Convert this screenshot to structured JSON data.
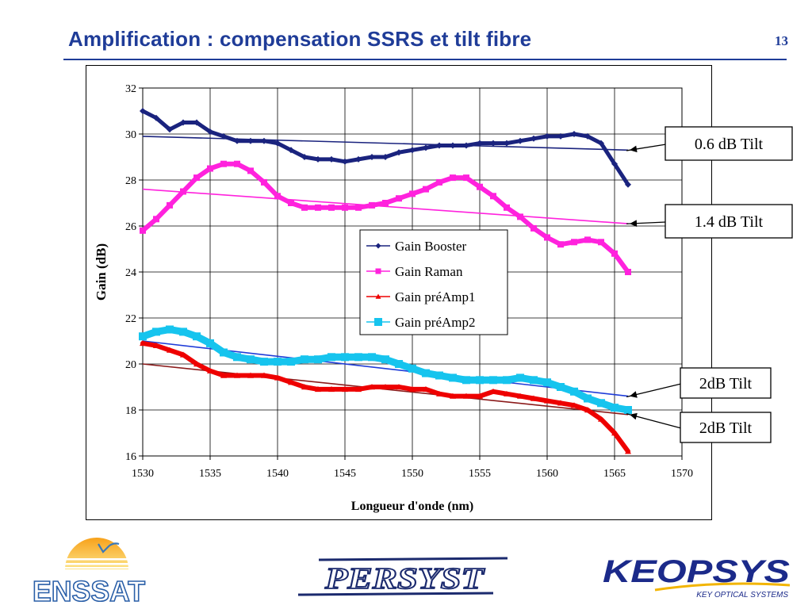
{
  "slide": {
    "title": "Amplification : compensation SSRS et tilt fibre",
    "page_number": "13"
  },
  "logos": {
    "enssat": "ENSSAT",
    "persyst": "PERSYST",
    "keopsys": "KEOPSYS",
    "keopsys_tagline": "KEY OPTICAL SYSTEMS"
  },
  "chart_data": {
    "type": "line",
    "xlabel": "Longueur d'onde (nm)",
    "ylabel": "Gain (dB)",
    "xlim": [
      1530,
      1570
    ],
    "ylim": [
      16,
      32
    ],
    "xticks": [
      1530,
      1535,
      1540,
      1545,
      1550,
      1555,
      1560,
      1565,
      1570
    ],
    "yticks": [
      16,
      18,
      20,
      22,
      24,
      26,
      28,
      30,
      32
    ],
    "grid": true,
    "legend_position": "center",
    "series": [
      {
        "name": "Gain Booster",
        "color": "#1a237e",
        "marker": "diamond",
        "x": [
          1530,
          1531,
          1532,
          1533,
          1534,
          1535,
          1536,
          1537,
          1538,
          1539,
          1540,
          1541,
          1542,
          1543,
          1544,
          1545,
          1546,
          1547,
          1548,
          1549,
          1550,
          1551,
          1552,
          1553,
          1554,
          1555,
          1556,
          1557,
          1558,
          1559,
          1560,
          1561,
          1562,
          1563,
          1564,
          1565,
          1566
        ],
        "y": [
          31.0,
          30.7,
          30.2,
          30.5,
          30.5,
          30.1,
          29.9,
          29.7,
          29.7,
          29.7,
          29.6,
          29.3,
          29.0,
          28.9,
          28.9,
          28.8,
          28.9,
          29.0,
          29.0,
          29.2,
          29.3,
          29.4,
          29.5,
          29.5,
          29.5,
          29.6,
          29.6,
          29.6,
          29.7,
          29.8,
          29.9,
          29.9,
          30.0,
          29.9,
          29.6,
          28.7,
          27.8
        ]
      },
      {
        "name": "Gain Raman",
        "color": "#ff22dd",
        "marker": "square",
        "x": [
          1530,
          1531,
          1532,
          1533,
          1534,
          1535,
          1536,
          1537,
          1538,
          1539,
          1540,
          1541,
          1542,
          1543,
          1544,
          1545,
          1546,
          1547,
          1548,
          1549,
          1550,
          1551,
          1552,
          1553,
          1554,
          1555,
          1556,
          1557,
          1558,
          1559,
          1560,
          1561,
          1562,
          1563,
          1564,
          1565,
          1566
        ],
        "y": [
          25.8,
          26.3,
          26.9,
          27.5,
          28.1,
          28.5,
          28.7,
          28.7,
          28.4,
          27.9,
          27.3,
          27.0,
          26.8,
          26.8,
          26.8,
          26.8,
          26.8,
          26.9,
          27.0,
          27.2,
          27.4,
          27.6,
          27.9,
          28.1,
          28.1,
          27.7,
          27.3,
          26.8,
          26.4,
          25.9,
          25.5,
          25.2,
          25.3,
          25.4,
          25.3,
          24.8,
          24.0
        ]
      },
      {
        "name": "Gain préAmp1",
        "color": "#ee0000",
        "marker": "triangle",
        "x": [
          1530,
          1531,
          1532,
          1533,
          1534,
          1535,
          1536,
          1537,
          1538,
          1539,
          1540,
          1541,
          1542,
          1543,
          1544,
          1545,
          1546,
          1547,
          1548,
          1549,
          1550,
          1551,
          1552,
          1553,
          1554,
          1555,
          1556,
          1557,
          1558,
          1559,
          1560,
          1561,
          1562,
          1563,
          1564,
          1565,
          1566
        ],
        "y": [
          20.9,
          20.8,
          20.6,
          20.4,
          20.0,
          19.7,
          19.5,
          19.5,
          19.5,
          19.5,
          19.4,
          19.2,
          19.0,
          18.9,
          18.9,
          18.9,
          18.9,
          19.0,
          19.0,
          19.0,
          18.9,
          18.9,
          18.7,
          18.6,
          18.6,
          18.6,
          18.8,
          18.7,
          18.6,
          18.5,
          18.4,
          18.3,
          18.2,
          18.0,
          17.6,
          17.0,
          16.2
        ]
      },
      {
        "name": "Gain préAmp2",
        "color": "#16c4ee",
        "marker": "square",
        "x": [
          1530,
          1531,
          1532,
          1533,
          1534,
          1535,
          1536,
          1537,
          1538,
          1539,
          1540,
          1541,
          1542,
          1543,
          1544,
          1545,
          1546,
          1547,
          1548,
          1549,
          1550,
          1551,
          1552,
          1553,
          1554,
          1555,
          1556,
          1557,
          1558,
          1559,
          1560,
          1561,
          1562,
          1563,
          1564,
          1565,
          1566
        ],
        "y": [
          21.2,
          21.4,
          21.5,
          21.4,
          21.2,
          20.9,
          20.5,
          20.3,
          20.2,
          20.1,
          20.1,
          20.1,
          20.2,
          20.2,
          20.3,
          20.3,
          20.3,
          20.3,
          20.2,
          20.0,
          19.8,
          19.6,
          19.5,
          19.4,
          19.3,
          19.3,
          19.3,
          19.3,
          19.4,
          19.3,
          19.2,
          19.0,
          18.8,
          18.5,
          18.3,
          18.1,
          18.0
        ]
      }
    ],
    "trend_lines": [
      {
        "color": "#1a237e",
        "x": [
          1530,
          1566
        ],
        "y": [
          29.9,
          29.3
        ]
      },
      {
        "color": "#ff22dd",
        "x": [
          1530,
          1566
        ],
        "y": [
          27.6,
          26.1
        ]
      },
      {
        "color": "#1f3cd8",
        "x": [
          1530,
          1566
        ],
        "y": [
          21.0,
          18.6
        ]
      },
      {
        "color": "#8b1a1a",
        "x": [
          1530,
          1566
        ],
        "y": [
          20.0,
          17.8
        ]
      }
    ],
    "annotations": [
      {
        "text": "0.6 dB Tilt",
        "arrow_to": [
          1566,
          29.3
        ]
      },
      {
        "text": "1.4 dB Tilt",
        "arrow_to": [
          1566,
          26.1
        ]
      },
      {
        "text": "2dB Tilt",
        "arrow_to": [
          1566,
          18.6
        ]
      },
      {
        "text": "2dB Tilt",
        "arrow_to": [
          1566,
          17.8
        ]
      }
    ]
  }
}
